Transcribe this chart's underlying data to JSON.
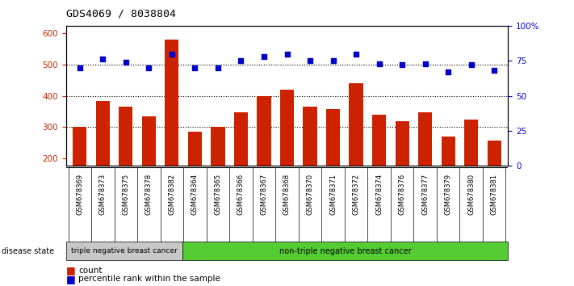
{
  "title": "GDS4069 / 8038804",
  "samples": [
    "GSM678369",
    "GSM678373",
    "GSM678375",
    "GSM678378",
    "GSM678382",
    "GSM678364",
    "GSM678365",
    "GSM678366",
    "GSM678367",
    "GSM678368",
    "GSM678370",
    "GSM678371",
    "GSM678372",
    "GSM678374",
    "GSM678376",
    "GSM678377",
    "GSM678379",
    "GSM678380",
    "GSM678381"
  ],
  "counts": [
    300,
    383,
    365,
    333,
    580,
    285,
    300,
    348,
    398,
    420,
    365,
    358,
    440,
    338,
    318,
    347,
    268,
    325,
    255
  ],
  "percentiles": [
    70,
    76,
    74,
    70,
    80,
    70,
    70,
    75,
    78,
    80,
    75,
    75,
    80,
    73,
    72,
    73,
    67,
    72,
    68
  ],
  "group1_count": 5,
  "group1_label": "triple negative breast cancer",
  "group2_label": "non-triple negative breast cancer",
  "ylim_left": [
    175,
    625
  ],
  "ylim_right": [
    0,
    100
  ],
  "yticks_left": [
    200,
    300,
    400,
    500,
    600
  ],
  "yticks_right": [
    0,
    25,
    50,
    75,
    100
  ],
  "bar_color": "#cc2200",
  "dot_color": "#0000cc",
  "group1_bg": "#c8c8c8",
  "group2_bg": "#55cc33",
  "plot_bg": "#ffffff",
  "legend_count_label": "count",
  "legend_pct_label": "percentile rank within the sample",
  "left_axis_color": "#cc2200",
  "right_axis_color": "#0000cc",
  "disease_state_label": "disease state"
}
